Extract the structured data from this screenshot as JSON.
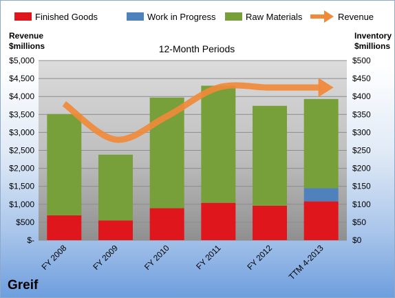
{
  "chart_data": {
    "type": "bar",
    "title": "12-Month Periods",
    "company": "Greif",
    "left_axis": {
      "title_line1": "Revenue",
      "title_line2": "$millions",
      "range": [
        0,
        5000
      ],
      "ticks": [
        "$-",
        "$500",
        "$1,000",
        "$1,500",
        "$2,000",
        "$2,500",
        "$3,000",
        "$3,500",
        "$4,000",
        "$4,500",
        "$5,000"
      ]
    },
    "right_axis": {
      "title_line1": "Inventory",
      "title_line2": "$millions",
      "range": [
        0,
        500
      ],
      "ticks": [
        "$0",
        "$50",
        "$100",
        "$150",
        "$200",
        "$250",
        "$300",
        "$350",
        "$400",
        "$450",
        "$500"
      ]
    },
    "categories": [
      "FY 2008",
      "FY 2009",
      "FY 2010",
      "FY 2011",
      "FY 2012",
      "TTM 4-2013"
    ],
    "series": [
      {
        "name": "Finished Goods",
        "color": "#e0161d",
        "axis": "right",
        "stacked": true,
        "values": [
          69,
          55,
          89,
          104,
          96,
          108
        ]
      },
      {
        "name": "Work in Progress",
        "color": "#4f81bd",
        "axis": "right",
        "stacked": true,
        "values": [
          0,
          0,
          0,
          0,
          0,
          37
        ]
      },
      {
        "name": "Raw Materials",
        "color": "#77a03b",
        "axis": "right",
        "stacked": true,
        "values": [
          282,
          183,
          308,
          326,
          278,
          248
        ]
      },
      {
        "name": "Revenue",
        "color": "#f08a3a",
        "axis": "left",
        "type": "line",
        "values": [
          3800,
          2800,
          3450,
          4250,
          4250,
          4250
        ]
      }
    ],
    "grid": true,
    "legend": "top"
  }
}
